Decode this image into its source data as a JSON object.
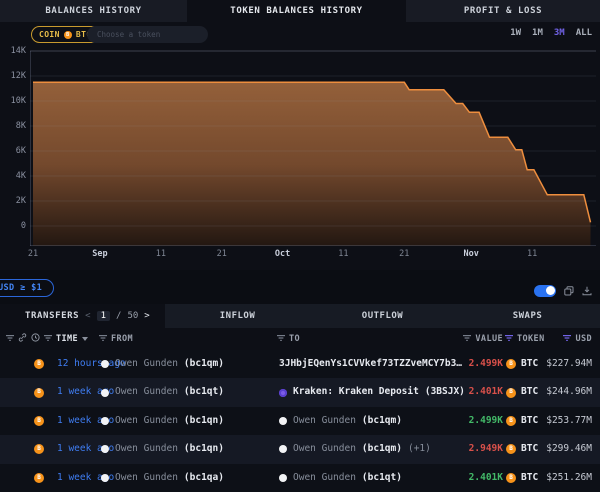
{
  "tabs": [
    {
      "label": "BALANCES HISTORY",
      "active": false
    },
    {
      "label": "TOKEN BALANCES HISTORY",
      "active": true
    },
    {
      "label": "PROFIT & LOSS",
      "active": false
    }
  ],
  "controls": {
    "coin_pill": {
      "label": "COIN",
      "token": "BTC"
    },
    "token_input_placeholder": "Choose a token",
    "ranges": [
      "1W",
      "1M",
      "3M",
      "ALL"
    ],
    "active_range": "3M"
  },
  "chart_data": {
    "type": "area",
    "series": [
      {
        "name": "BTC token balance",
        "points": [
          [
            0,
            11500
          ],
          [
            61,
            11500
          ],
          [
            61.8,
            10900
          ],
          [
            67.5,
            10900
          ],
          [
            69.5,
            9800
          ],
          [
            70.6,
            9800
          ],
          [
            71.7,
            9100
          ],
          [
            73.3,
            9100
          ],
          [
            75,
            7100
          ],
          [
            78,
            7100
          ],
          [
            79.3,
            6100
          ],
          [
            80.3,
            6100
          ],
          [
            81.2,
            4500
          ],
          [
            82.3,
            4500
          ],
          [
            84.5,
            2500
          ],
          [
            90.5,
            2500
          ],
          [
            91.6,
            300
          ]
        ]
      }
    ],
    "x_unit": "days since Aug 21",
    "xlim": [
      -0.5,
      92.5
    ],
    "ylim": [
      0,
      14000
    ],
    "ytick_labels": [
      "14K",
      "12K",
      "10K",
      "8K",
      "6K",
      "4K",
      "2K",
      "0"
    ],
    "xticks": [
      {
        "d": 0,
        "label": "21"
      },
      {
        "d": 11,
        "label": "Sep",
        "strong": true
      },
      {
        "d": 21,
        "label": "11"
      },
      {
        "d": 31,
        "label": "21"
      },
      {
        "d": 41,
        "label": "Oct",
        "strong": true
      },
      {
        "d": 51,
        "label": "11"
      },
      {
        "d": 61,
        "label": "21"
      },
      {
        "d": 72,
        "label": "Nov",
        "strong": true
      },
      {
        "d": 82,
        "label": "11"
      }
    ],
    "grid": true,
    "legend": "none",
    "line_color": "#ee8e3e",
    "fill_top": "#94603a",
    "fill_mid": "#74492d",
    "fill_bottom": "#231711"
  },
  "filter_bar": {
    "pill_label": "USD ≥ $1",
    "toggle_on": true
  },
  "transfers": {
    "title": "TRANSFERS",
    "pager": {
      "prev": "<",
      "next": ">",
      "sep": "/"
    },
    "page": "1",
    "total_pages": "50",
    "flow_tabs": [
      "INFLOW",
      "OUTFLOW",
      "SWAPS"
    ],
    "columns": {
      "time": "TIME",
      "from": "FROM",
      "to": "TO",
      "value": "VALUE",
      "token": "TOKEN",
      "usd": "USD"
    },
    "rows": [
      {
        "token": "BTC",
        "time": "12 hours ago",
        "from": {
          "icon": "owen",
          "name": "Owen Gunden",
          "tag": "(bc1qm)"
        },
        "to": {
          "icon": null,
          "name": "3JHbjEQenYs1CVVkef73TZZveMCY7b3…",
          "tag": "",
          "bright": true
        },
        "value": "2.499K",
        "direction": "out",
        "usd": "$227.94M"
      },
      {
        "token": "BTC",
        "time": "1 week ago",
        "from": {
          "icon": "owen",
          "name": "Owen Gunden",
          "tag": "(bc1qt)"
        },
        "to": {
          "icon": "kraken",
          "name": "Kraken: Kraken Deposit",
          "tag": "(3BSJX)",
          "bright": true
        },
        "value": "2.401K",
        "direction": "out",
        "usd": "$244.96M"
      },
      {
        "token": "BTC",
        "time": "1 week ago",
        "from": {
          "icon": "owen",
          "name": "Owen Gunden",
          "tag": "(bc1qn)"
        },
        "to": {
          "icon": "owen",
          "name": "Owen Gunden",
          "tag": "(bc1qm)"
        },
        "value": "2.499K",
        "direction": "in",
        "usd": "$253.77M"
      },
      {
        "token": "BTC",
        "time": "1 week ago",
        "from": {
          "icon": "owen",
          "name": "Owen Gunden",
          "tag": "(bc1qn)"
        },
        "to": {
          "icon": "owen",
          "name": "Owen Gunden",
          "tag": "(bc1qm)",
          "suffix": "(+1)"
        },
        "value": "2.949K",
        "direction": "out",
        "usd": "$299.46M"
      },
      {
        "token": "BTC",
        "time": "1 week ago",
        "from": {
          "icon": "owen",
          "name": "Owen Gunden",
          "tag": "(bc1qa)"
        },
        "to": {
          "icon": "owen",
          "name": "Owen Gunden",
          "tag": "(bc1qt)"
        },
        "value": "2.401K",
        "direction": "in",
        "usd": "$251.26M"
      }
    ]
  },
  "colors": {
    "accent_blue": "#3f7df2",
    "accent_purple": "#7263e8",
    "gold": "#e6bc49",
    "btc_orange": "#f7931a",
    "outflow_red": "#d8504a",
    "inflow_green": "#43b968"
  }
}
